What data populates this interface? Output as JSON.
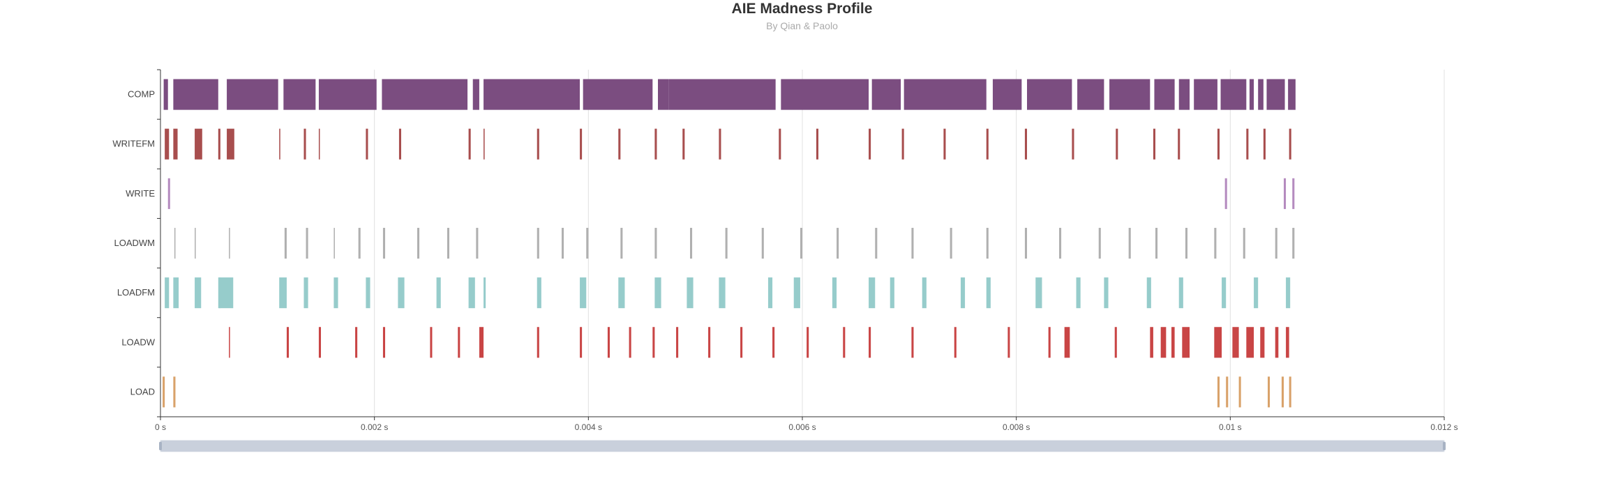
{
  "chart_data": {
    "type": "bar",
    "title": "AIE Madness Profile",
    "subtitle": "By Qian & Paolo",
    "xlim": [
      0,
      0.012
    ],
    "x_ticks": [
      {
        "value": 0,
        "label": "0 s"
      },
      {
        "value": 0.002,
        "label": "0.002 s"
      },
      {
        "value": 0.004,
        "label": "0.004 s"
      },
      {
        "value": 0.006,
        "label": "0.006 s"
      },
      {
        "value": 0.008,
        "label": "0.008 s"
      },
      {
        "value": 0.01,
        "label": "0.01 s"
      },
      {
        "value": 0.012,
        "label": "0.012 s"
      }
    ],
    "grid": "vertical",
    "categories": [
      "COMP",
      "WRITEFM",
      "WRITE",
      "LOADWM",
      "LOADFM",
      "LOADW",
      "LOAD"
    ],
    "colors": {
      "COMP": "#7b4d80",
      "WRITEFM": "#a84e4e",
      "WRITE": "#b58bbf",
      "LOADWM": "#b0b0b0",
      "LOADFM": "#96cccb",
      "LOADW": "#c94545",
      "LOAD": "#d9a26a"
    },
    "series": [
      {
        "category": "COMP",
        "intervals": [
          [
            3e-05,
            7e-05
          ],
          [
            0.00012,
            0.00054
          ],
          [
            0.00062,
            0.0011
          ],
          [
            0.00115,
            0.00145
          ],
          [
            0.00148,
            0.00202
          ],
          [
            0.00207,
            0.00287
          ],
          [
            0.00292,
            0.00298
          ],
          [
            0.00302,
            0.00392
          ],
          [
            0.00395,
            0.0046
          ],
          [
            0.00465,
            0.00475
          ],
          [
            0.00475,
            0.00575
          ],
          [
            0.0058,
            0.00662
          ],
          [
            0.00665,
            0.00692
          ],
          [
            0.00695,
            0.00772
          ],
          [
            0.00778,
            0.00805
          ],
          [
            0.0081,
            0.00852
          ],
          [
            0.00857,
            0.00882
          ],
          [
            0.00887,
            0.00925
          ],
          [
            0.00929,
            0.00948
          ],
          [
            0.00952,
            0.00962
          ],
          [
            0.00966,
            0.00988
          ],
          [
            0.00991,
            0.01015
          ],
          [
            0.01018,
            0.01022
          ],
          [
            0.01026,
            0.01031
          ],
          [
            0.01034,
            0.01051
          ],
          [
            0.01054,
            0.01061
          ]
        ]
      },
      {
        "category": "WRITEFM",
        "intervals": [
          [
            4e-05,
            8e-05
          ],
          [
            0.00012,
            0.00016
          ],
          [
            0.00032,
            0.00039
          ],
          [
            0.00054,
            0.00056
          ],
          [
            0.00062,
            0.00069
          ],
          [
            0.00111,
            0.00112
          ],
          [
            0.00134,
            0.00136
          ],
          [
            0.00148,
            0.00149
          ],
          [
            0.00192,
            0.00194
          ],
          [
            0.00223,
            0.00225
          ],
          [
            0.00288,
            0.0029
          ],
          [
            0.00302,
            0.00303
          ],
          [
            0.00352,
            0.00354
          ],
          [
            0.00392,
            0.00394
          ],
          [
            0.00428,
            0.0043
          ],
          [
            0.00462,
            0.00464
          ],
          [
            0.00488,
            0.0049
          ],
          [
            0.00522,
            0.00524
          ],
          [
            0.00578,
            0.0058
          ],
          [
            0.00613,
            0.00615
          ],
          [
            0.00662,
            0.00664
          ],
          [
            0.00693,
            0.00695
          ],
          [
            0.00732,
            0.00734
          ],
          [
            0.00772,
            0.00774
          ],
          [
            0.00808,
            0.0081
          ],
          [
            0.00852,
            0.00854
          ],
          [
            0.00893,
            0.00895
          ],
          [
            0.00928,
            0.0093
          ],
          [
            0.00951,
            0.00953
          ],
          [
            0.00988,
            0.0099
          ],
          [
            0.01015,
            0.01017
          ],
          [
            0.01031,
            0.01033
          ],
          [
            0.01055,
            0.01057
          ]
        ]
      },
      {
        "category": "WRITE",
        "intervals": [
          [
            7e-05,
            9e-05
          ],
          [
            0.00995,
            0.00997
          ],
          [
            0.0105,
            0.01052
          ],
          [
            0.01058,
            0.0106
          ]
        ]
      },
      {
        "category": "LOADWM",
        "intervals": [
          [
            0.00013,
            0.00014
          ],
          [
            0.00032,
            0.00033
          ],
          [
            0.00064,
            0.00065
          ],
          [
            0.00116,
            0.00118
          ],
          [
            0.00136,
            0.00138
          ],
          [
            0.00162,
            0.00163
          ],
          [
            0.00185,
            0.00187
          ],
          [
            0.00208,
            0.0021
          ],
          [
            0.0024,
            0.00242
          ],
          [
            0.00268,
            0.0027
          ],
          [
            0.00295,
            0.00297
          ],
          [
            0.00352,
            0.00354
          ],
          [
            0.00375,
            0.00377
          ],
          [
            0.00398,
            0.004
          ],
          [
            0.0043,
            0.00432
          ],
          [
            0.00462,
            0.00464
          ],
          [
            0.00495,
            0.00497
          ],
          [
            0.00528,
            0.0053
          ],
          [
            0.00562,
            0.00564
          ],
          [
            0.00598,
            0.006
          ],
          [
            0.00632,
            0.00634
          ],
          [
            0.00668,
            0.0067
          ],
          [
            0.00702,
            0.00704
          ],
          [
            0.00738,
            0.0074
          ],
          [
            0.00772,
            0.00774
          ],
          [
            0.00808,
            0.0081
          ],
          [
            0.0084,
            0.00842
          ],
          [
            0.00877,
            0.00879
          ],
          [
            0.00905,
            0.00907
          ],
          [
            0.0093,
            0.00932
          ],
          [
            0.00958,
            0.0096
          ],
          [
            0.00985,
            0.00987
          ],
          [
            0.01012,
            0.01014
          ],
          [
            0.01042,
            0.01044
          ],
          [
            0.01058,
            0.0106
          ]
        ]
      },
      {
        "category": "LOADFM",
        "intervals": [
          [
            4e-05,
            8e-05
          ],
          [
            0.00012,
            0.00017
          ],
          [
            0.00032,
            0.00038
          ],
          [
            0.00054,
            0.00056
          ],
          [
            0.00055,
            0.00068
          ],
          [
            0.00111,
            0.00118
          ],
          [
            0.00134,
            0.00138
          ],
          [
            0.00162,
            0.00166
          ],
          [
            0.00192,
            0.00196
          ],
          [
            0.00222,
            0.00228
          ],
          [
            0.00258,
            0.00262
          ],
          [
            0.00288,
            0.00294
          ],
          [
            0.00302,
            0.00304
          ],
          [
            0.00352,
            0.00356
          ],
          [
            0.00392,
            0.00398
          ],
          [
            0.00428,
            0.00434
          ],
          [
            0.00462,
            0.00468
          ],
          [
            0.00492,
            0.00498
          ],
          [
            0.00522,
            0.00528
          ],
          [
            0.00568,
            0.00572
          ],
          [
            0.00592,
            0.00598
          ],
          [
            0.00628,
            0.00632
          ],
          [
            0.00662,
            0.00668
          ],
          [
            0.00682,
            0.00686
          ],
          [
            0.00712,
            0.00716
          ],
          [
            0.00748,
            0.00752
          ],
          [
            0.00772,
            0.00776
          ],
          [
            0.00818,
            0.00824
          ],
          [
            0.00856,
            0.0086
          ],
          [
            0.00882,
            0.00886
          ],
          [
            0.00922,
            0.00926
          ],
          [
            0.00952,
            0.00956
          ],
          [
            0.00992,
            0.00996
          ],
          [
            0.01022,
            0.01026
          ],
          [
            0.01052,
            0.01056
          ]
        ]
      },
      {
        "category": "LOADW",
        "intervals": [
          [
            0.00064,
            0.00065
          ],
          [
            0.00118,
            0.0012
          ],
          [
            0.00148,
            0.0015
          ],
          [
            0.00182,
            0.00184
          ],
          [
            0.00208,
            0.0021
          ],
          [
            0.00252,
            0.00254
          ],
          [
            0.00278,
            0.0028
          ],
          [
            0.00298,
            0.00302
          ],
          [
            0.00352,
            0.00354
          ],
          [
            0.00392,
            0.00394
          ],
          [
            0.00418,
            0.0042
          ],
          [
            0.00438,
            0.0044
          ],
          [
            0.0046,
            0.00462
          ],
          [
            0.00482,
            0.00484
          ],
          [
            0.00512,
            0.00514
          ],
          [
            0.00542,
            0.00544
          ],
          [
            0.00572,
            0.00574
          ],
          [
            0.00604,
            0.00606
          ],
          [
            0.00638,
            0.0064
          ],
          [
            0.00662,
            0.00664
          ],
          [
            0.00702,
            0.00704
          ],
          [
            0.00742,
            0.00744
          ],
          [
            0.00792,
            0.00794
          ],
          [
            0.0083,
            0.00832
          ],
          [
            0.00845,
            0.0085
          ],
          [
            0.00892,
            0.00894
          ],
          [
            0.00925,
            0.00928
          ],
          [
            0.00935,
            0.0094
          ],
          [
            0.00945,
            0.00948
          ],
          [
            0.00955,
            0.00962
          ],
          [
            0.00985,
            0.00992
          ],
          [
            0.01002,
            0.01008
          ],
          [
            0.01015,
            0.01022
          ],
          [
            0.01028,
            0.01032
          ],
          [
            0.01042,
            0.01045
          ],
          [
            0.01052,
            0.01055
          ]
        ]
      },
      {
        "category": "LOAD",
        "intervals": [
          [
            2e-05,
            4e-05
          ],
          [
            0.00012,
            0.00014
          ],
          [
            0.00988,
            0.0099
          ],
          [
            0.00996,
            0.00998
          ],
          [
            0.01008,
            0.0101
          ],
          [
            0.01035,
            0.01037
          ],
          [
            0.01048,
            0.0105
          ],
          [
            0.01055,
            0.01057
          ]
        ]
      }
    ],
    "data_zoom": {
      "start": 0,
      "end": 1
    }
  }
}
